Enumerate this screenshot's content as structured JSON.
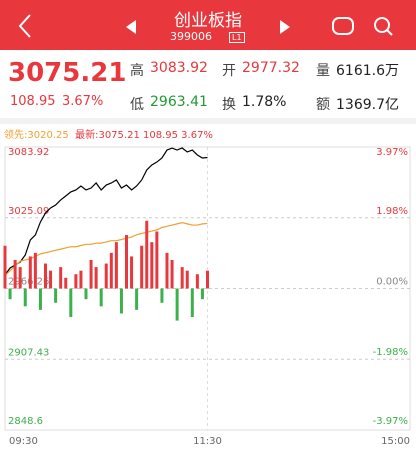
{
  "header": {
    "title": "创业板指",
    "code": "399006",
    "badge": "L1"
  },
  "quote": {
    "price": "3075.21",
    "change": "108.95",
    "change_pct": "3.67%",
    "cells": [
      [
        "高",
        "3083.92"
      ],
      [
        "开",
        "2977.32"
      ],
      [
        "量",
        "6161.6万"
      ],
      [
        "低",
        "2963.41"
      ],
      [
        "换",
        "1.78%"
      ],
      [
        "额",
        "1369.7亿"
      ]
    ]
  },
  "legend_bar": {
    "lead": "领先:3020.25",
    "latest": "最新:3075.21 108.95 3.67%"
  },
  "chart_data": {
    "type": "line",
    "categories": [
      "09:30",
      null,
      null,
      null,
      null,
      null,
      null,
      null,
      null,
      null,
      null,
      null,
      null,
      null,
      null,
      null,
      null,
      null,
      null,
      null,
      null,
      null,
      null,
      null,
      null,
      null,
      null,
      null,
      null,
      null,
      null,
      null,
      null,
      null,
      null,
      null,
      null,
      null,
      null,
      null,
      "11:30",
      null,
      null,
      null,
      null,
      null,
      null,
      null,
      null,
      null,
      null,
      null,
      null,
      null,
      null,
      null,
      null,
      null,
      null,
      null,
      null,
      null,
      null,
      null,
      null,
      null,
      null,
      null,
      null,
      null,
      null,
      null,
      null,
      null,
      null,
      null,
      null,
      null,
      null,
      null,
      "15:00"
    ],
    "series": [
      {
        "color": "#000000",
        "values": [
          2977.5,
          2983.3,
          2985.8,
          2988.3,
          2994.1,
          3006.6,
          3010.8,
          3021.6,
          3029.1,
          3033.2,
          3035.7,
          3039.9,
          3043.2,
          3046.6,
          3048.2,
          3051.5,
          3048.2,
          3049.8,
          3054.0,
          3048.2,
          3052.3,
          3054.0,
          3056.5,
          3049.8,
          3052.3,
          3048.2,
          3051.5,
          3056.5,
          3064.8,
          3069.0,
          3071.4,
          3074.8,
          3081.4,
          3083.0,
          3081.4,
          3083.1,
          3079.8,
          3081.4,
          3077.3,
          3074.8,
          3075.21,
          null,
          null,
          null,
          null,
          null,
          null,
          null,
          null,
          null,
          null,
          null,
          null,
          null,
          null,
          null,
          null,
          null,
          null,
          null,
          null,
          null,
          null,
          null,
          null,
          null,
          null,
          null,
          null,
          null,
          null,
          null,
          null,
          null,
          null,
          null,
          null,
          null,
          null,
          null,
          null
        ]
      },
      {
        "color": "#f0a030",
        "values": [
          2977,
          2981,
          2985,
          2989,
          2990,
          2991,
          2993,
          2995,
          2996,
          2997,
          2998,
          2999,
          3000,
          3001,
          3001,
          3002,
          3003,
          3003,
          3004,
          3004,
          3005,
          3006,
          3006,
          3007,
          3008,
          3009,
          3011,
          3012,
          3013,
          3014,
          3015,
          3017,
          3018,
          3019,
          3020,
          3021,
          3020,
          3019,
          3019,
          3020,
          3020.25,
          null,
          null,
          null,
          null,
          null,
          null,
          null,
          null,
          null,
          null,
          null,
          null,
          null,
          null,
          null,
          null,
          null,
          null,
          null,
          null,
          null,
          null,
          null,
          null,
          null,
          null,
          null,
          null,
          null,
          null,
          null,
          null,
          null,
          null,
          null,
          null,
          null,
          null,
          null,
          null
        ]
      },
      {
        "type": "bar",
        "axis": "y2",
        "color": "#e8383d",
        "negative_color": "#3cb04b",
        "values": [
          1.2,
          -0.3,
          0.8,
          0.6,
          -0.5,
          0.9,
          1.0,
          -0.6,
          0.7,
          0.5,
          -0.4,
          0.6,
          0.3,
          -0.8,
          0.4,
          0.5,
          -0.3,
          0.8,
          0.6,
          -0.5,
          0.7,
          1.0,
          1.3,
          -0.7,
          1.5,
          0.9,
          -0.6,
          1.2,
          1.9,
          1.3,
          1.6,
          -0.4,
          1.0,
          0.8,
          -0.9,
          0.6,
          0.5,
          -0.8,
          0.4,
          -0.3,
          0.5,
          null,
          null,
          null,
          null,
          null,
          null,
          null,
          null,
          null,
          null,
          null,
          null,
          null,
          null,
          null,
          null,
          null,
          null,
          null,
          null,
          null,
          null,
          null,
          null,
          null,
          null,
          null,
          null,
          null,
          null,
          null,
          null,
          null,
          null,
          null,
          null,
          null,
          null,
          null,
          null
        ]
      }
    ],
    "ylim": [
      2848.6,
      3083.92
    ],
    "yticks": [
      3083.92,
      3025.09,
      2966.26,
      2907.43,
      2848.6
    ],
    "y2lim": [
      -3.97,
      3.97
    ],
    "y2ticks": [
      {
        "value": 3.97,
        "label": "3.97%"
      },
      {
        "value": 1.98,
        "label": "1.98%"
      },
      {
        "value": 0,
        "label": "0.00%"
      },
      {
        "value": -1.98,
        "label": "-1.98%"
      },
      {
        "value": -3.97,
        "label": "-3.97%"
      }
    ],
    "up_color": "#e8383d",
    "down_color": "#3cb04b",
    "flat_color": "#888888",
    "grid": true
  }
}
